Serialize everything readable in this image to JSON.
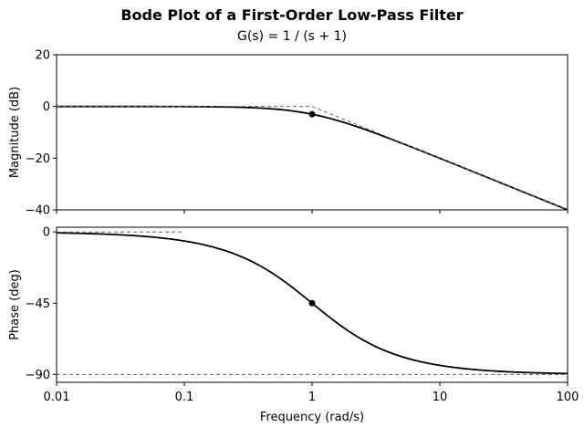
{
  "title": "Bode Plot of a First-Order Low-Pass Filter",
  "subtitle": "G(s) = 1 / (s + 1)",
  "colors": {
    "curve": "#000000",
    "asymptote": "#666666"
  },
  "chart_data": [
    {
      "type": "line",
      "xscale": "log",
      "xlim": [
        0.01,
        100
      ],
      "ylim": [
        -40,
        20
      ],
      "xlabel": "",
      "ylabel": "Magnitude (dB)",
      "y_ticks": [
        {
          "value": 20,
          "label": "20"
        },
        {
          "value": 0,
          "label": "0"
        },
        {
          "value": -20,
          "label": "−20"
        },
        {
          "value": -40,
          "label": "−40"
        }
      ],
      "series": [
        {
          "style": "solid",
          "function": "magnitude_db",
          "x": [
            0.01,
            0.1,
            0.2,
            0.5,
            1,
            2,
            5,
            10,
            20,
            50,
            100
          ],
          "y": [
            0.0,
            -0.04,
            -0.17,
            -0.97,
            -3.01,
            -6.99,
            -14.15,
            -20.04,
            -26.03,
            -33.98,
            -40.0
          ]
        },
        {
          "style": "dashed",
          "function": "asymptote",
          "x": [
            0.01,
            1,
            100
          ],
          "y": [
            0,
            0,
            -40
          ]
        }
      ],
      "markers": [
        {
          "x": 1,
          "y": -3.01
        }
      ]
    },
    {
      "type": "line",
      "xscale": "log",
      "xlim": [
        0.01,
        100
      ],
      "ylim": [
        -95,
        3
      ],
      "xlabel": "Frequency (rad/s)",
      "ylabel": "Phase (deg)",
      "x_ticks": [
        {
          "value": 0.01,
          "label": "0.01"
        },
        {
          "value": 0.1,
          "label": "0.1"
        },
        {
          "value": 1,
          "label": "1"
        },
        {
          "value": 10,
          "label": "10"
        },
        {
          "value": 100,
          "label": "100"
        }
      ],
      "y_ticks": [
        {
          "value": 0,
          "label": "0"
        },
        {
          "value": -45,
          "label": "−45"
        },
        {
          "value": -90,
          "label": "−90"
        }
      ],
      "series": [
        {
          "style": "solid",
          "function": "phase_deg",
          "x": [
            0.01,
            0.1,
            0.2,
            0.5,
            1,
            2,
            5,
            10,
            20,
            50,
            100
          ],
          "y": [
            -0.57,
            -5.71,
            -11.31,
            -26.57,
            -45.0,
            -63.43,
            -78.69,
            -84.29,
            -87.14,
            -88.85,
            -89.43
          ]
        },
        {
          "style": "dashed",
          "function": "flat",
          "x": [
            0.01,
            0.1
          ],
          "y": [
            0,
            0
          ]
        },
        {
          "style": "dashed",
          "function": "flat",
          "x": [
            0.01,
            100
          ],
          "y": [
            -90,
            -90
          ]
        }
      ],
      "markers": [
        {
          "x": 1,
          "y": -45.0
        }
      ]
    }
  ]
}
